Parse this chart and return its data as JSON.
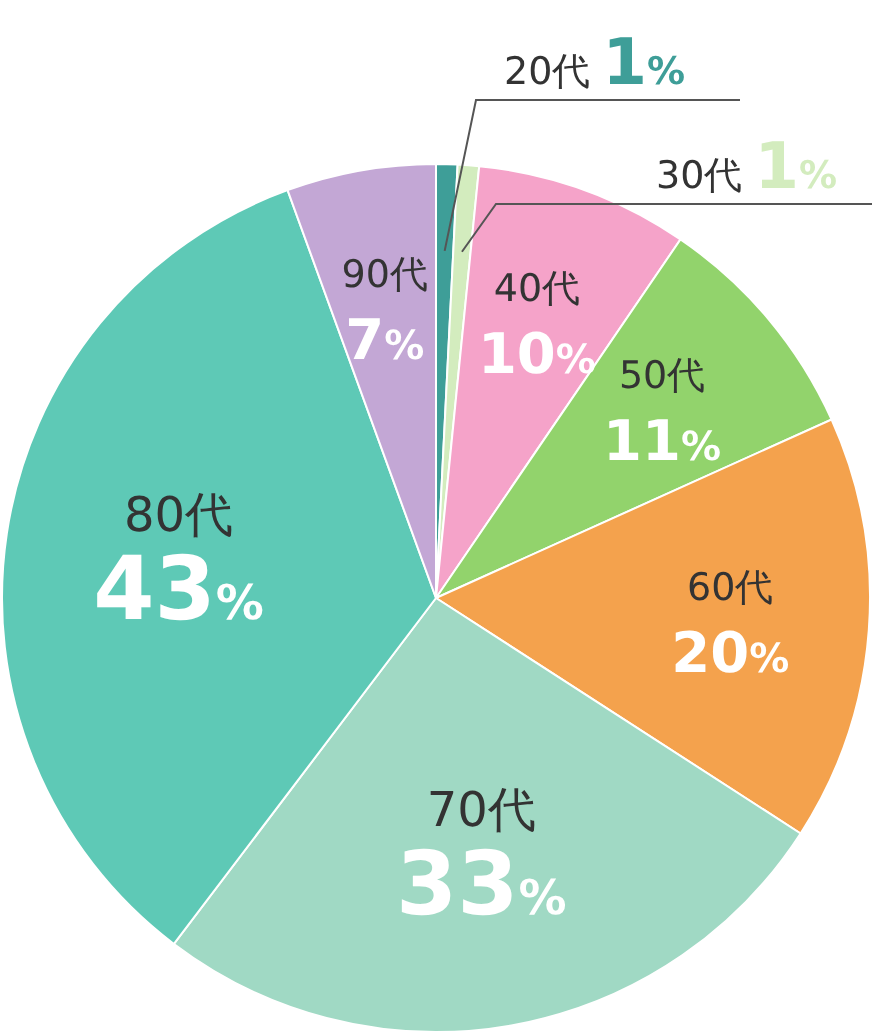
{
  "chart_data": {
    "type": "pie",
    "categories": [
      "20代",
      "30代",
      "40代",
      "50代",
      "60代",
      "70代",
      "80代",
      "90代"
    ],
    "values": [
      1,
      1,
      10,
      11,
      20,
      33,
      43,
      7
    ],
    "value_labels": [
      "1%",
      "1%",
      "10%",
      "11%",
      "20%",
      "33%",
      "43%",
      "7%"
    ],
    "colors": [
      "#3e9e98",
      "#d3ecbe",
      "#f5a3c9",
      "#92d36c",
      "#f4a24d",
      "#a0d9c4",
      "#5ec9b6",
      "#c3a7d5"
    ]
  }
}
